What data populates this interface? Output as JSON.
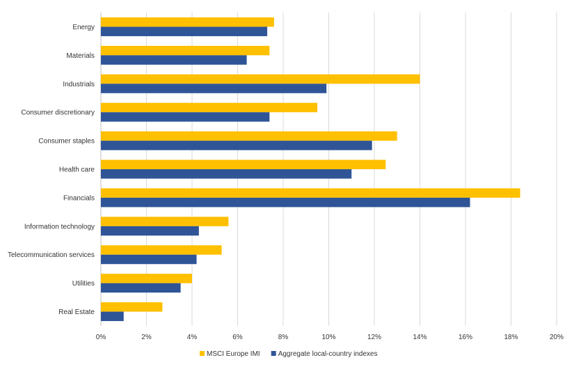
{
  "chart_data": {
    "type": "bar",
    "orientation": "horizontal",
    "title": "",
    "xlabel": "",
    "ylabel": "",
    "categories": [
      "Energy",
      "Materials",
      "Industrials",
      "Consumer discretionary",
      "Consumer staples",
      "Health care",
      "Financials",
      "Information technology",
      "Telecommunication services",
      "Utilities",
      "Real Estate"
    ],
    "series": [
      {
        "name": "MSCI Europe IMI",
        "color": "#FFC000",
        "values": [
          7.6,
          7.4,
          14.0,
          9.5,
          13.0,
          12.5,
          18.4,
          5.6,
          5.3,
          4.0,
          2.7
        ]
      },
      {
        "name": "Aggregate local-country indexes",
        "color": "#2F5597",
        "values": [
          7.3,
          6.4,
          9.9,
          7.4,
          11.9,
          11.0,
          16.2,
          4.3,
          4.2,
          3.5,
          1.0
        ]
      }
    ],
    "xlim": [
      0,
      20
    ],
    "xticks": [
      "0%",
      "2%",
      "4%",
      "6%",
      "8%",
      "10%",
      "12%",
      "14%",
      "16%",
      "18%",
      "20%"
    ],
    "grid": true,
    "legend_position": "bottom"
  }
}
